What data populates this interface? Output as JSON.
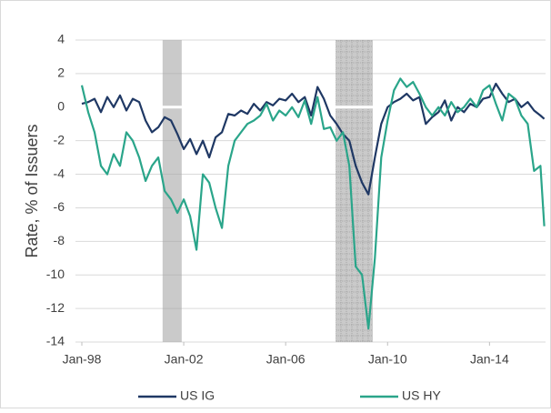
{
  "chart_data": {
    "type": "line",
    "y_label": "Rate, % of Issuers",
    "x": [
      1998,
      1998.25,
      1998.5,
      1998.75,
      1999,
      1999.25,
      1999.5,
      1999.75,
      2000,
      2000.25,
      2000.5,
      2000.75,
      2001,
      2001.25,
      2001.5,
      2001.75,
      2002,
      2002.25,
      2002.5,
      2002.75,
      2003,
      2003.25,
      2003.5,
      2003.75,
      2004,
      2004.25,
      2004.5,
      2004.75,
      2005,
      2005.25,
      2005.5,
      2005.75,
      2006,
      2006.25,
      2006.5,
      2006.75,
      2007,
      2007.25,
      2007.5,
      2007.75,
      2008,
      2008.25,
      2008.5,
      2008.75,
      2009,
      2009.25,
      2009.5,
      2009.75,
      2010,
      2010.25,
      2010.5,
      2010.75,
      2011,
      2011.25,
      2011.5,
      2011.75,
      2012,
      2012.25,
      2012.5,
      2012.75,
      2013,
      2013.25,
      2013.5,
      2013.75,
      2014,
      2014.25,
      2014.5,
      2014.75,
      2015,
      2015.25,
      2015.5,
      2015.75,
      2016,
      2016.15
    ],
    "series": [
      {
        "name": "US IG",
        "color": "#1f3864",
        "values": [
          0.2,
          0.3,
          0.5,
          -0.3,
          0.6,
          0.0,
          0.7,
          -0.2,
          0.5,
          0.3,
          -0.8,
          -1.5,
          -1.2,
          -0.6,
          -0.8,
          -1.6,
          -2.5,
          -1.9,
          -2.8,
          -2.0,
          -3.0,
          -1.8,
          -1.5,
          -0.4,
          -0.5,
          -0.2,
          -0.4,
          0.2,
          -0.2,
          0.3,
          0.1,
          0.5,
          0.4,
          0.8,
          0.3,
          0.6,
          -0.5,
          1.2,
          0.5,
          -0.5,
          -1.0,
          -1.6,
          -2.0,
          -3.5,
          -4.5,
          -5.2,
          -3.0,
          -1.0,
          0.0,
          0.3,
          0.5,
          0.8,
          0.4,
          0.6,
          -1.0,
          -0.6,
          -0.3,
          0.4,
          -0.8,
          0.0,
          -0.3,
          0.2,
          0.0,
          0.5,
          0.6,
          1.4,
          0.8,
          0.3,
          0.5,
          0.0,
          0.3,
          -0.2,
          -0.5,
          -0.7
        ]
      },
      {
        "name": "US HY",
        "color": "#2aa58a",
        "values": [
          1.3,
          -0.3,
          -1.5,
          -3.5,
          -4.0,
          -2.8,
          -3.5,
          -1.5,
          -2.0,
          -3.0,
          -4.4,
          -3.5,
          -3.0,
          -5.0,
          -5.5,
          -6.3,
          -5.5,
          -6.5,
          -8.5,
          -4.0,
          -4.5,
          -6.0,
          -7.2,
          -3.5,
          -2.0,
          -1.5,
          -1.0,
          -0.8,
          -0.5,
          0.2,
          -0.8,
          -0.2,
          -0.5,
          0.0,
          -0.6,
          0.4,
          -1.0,
          0.6,
          -1.3,
          -1.2,
          -2.0,
          -1.5,
          -3.5,
          -9.5,
          -10.0,
          -13.2,
          -9.0,
          -3.0,
          -0.8,
          1.0,
          1.7,
          1.2,
          1.5,
          0.8,
          0.0,
          -0.5,
          0.0,
          -0.5,
          0.3,
          -0.3,
          0.0,
          0.5,
          0.0,
          1.0,
          1.3,
          0.2,
          -0.8,
          0.8,
          0.5,
          -0.5,
          -1.0,
          -3.8,
          -3.5,
          -7.1
        ]
      }
    ],
    "recessions": [
      {
        "start": 2001.17,
        "end": 2001.92
      },
      {
        "start": 2007.96,
        "end": 2009.42
      }
    ],
    "recession_color": "#a6a6a6",
    "xlim": [
      1997.75,
      2016.2
    ],
    "xticks": [
      {
        "value": 1998,
        "label": "Jan-98"
      },
      {
        "value": 2002,
        "label": "Jan-02"
      },
      {
        "value": 2006,
        "label": "Jan-06"
      },
      {
        "value": 2010,
        "label": "Jan-10"
      },
      {
        "value": 2014,
        "label": "Jan-14"
      }
    ],
    "ylim": [
      -14,
      4
    ],
    "yticks": [
      -14,
      -12,
      -10,
      -8,
      -6,
      -4,
      -2,
      0,
      2,
      4
    ],
    "grid": true,
    "zero_line_color": "#ffffff",
    "legend": "bottom"
  }
}
